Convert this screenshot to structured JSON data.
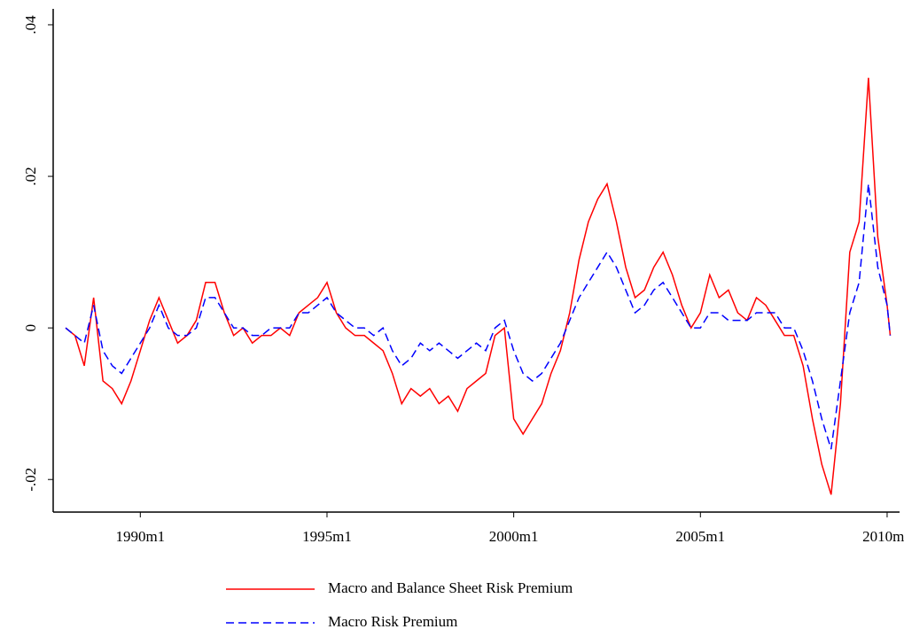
{
  "chart_data": {
    "type": "line",
    "x": [
      336,
      339,
      342,
      345,
      348,
      351,
      354,
      357,
      360,
      363,
      366,
      369,
      372,
      375,
      378,
      381,
      384,
      387,
      390,
      393,
      396,
      399,
      402,
      405,
      408,
      411,
      414,
      417,
      420,
      423,
      426,
      429,
      432,
      435,
      438,
      441,
      444,
      447,
      450,
      453,
      456,
      459,
      462,
      465,
      468,
      471,
      474,
      477,
      480,
      483,
      486,
      489,
      492,
      495,
      498,
      501,
      504,
      507,
      510,
      513,
      516,
      519,
      522,
      525,
      528,
      531,
      534,
      537,
      540,
      543,
      546,
      549,
      552,
      555,
      558,
      561,
      564,
      567,
      570,
      573,
      576,
      579,
      582,
      585,
      588,
      591,
      594,
      597,
      600,
      601
    ],
    "series": [
      {
        "name": "Macro and Balance Sheet Risk Premium",
        "color": "#ff0000",
        "dash": false,
        "values": [
          0,
          -0.001,
          -0.005,
          0.004,
          -0.007,
          -0.008,
          -0.01,
          -0.007,
          -0.003,
          0.001,
          0.004,
          0.001,
          -0.002,
          -0.001,
          0.001,
          0.006,
          0.006,
          0.002,
          -0.001,
          0,
          -0.002,
          -0.001,
          -0.001,
          0,
          -0.001,
          0.002,
          0.003,
          0.004,
          0.006,
          0.002,
          0,
          -0.001,
          -0.001,
          -0.002,
          -0.003,
          -0.006,
          -0.01,
          -0.008,
          -0.009,
          -0.008,
          -0.01,
          -0.009,
          -0.011,
          -0.008,
          -0.007,
          -0.006,
          -0.001,
          0,
          -0.012,
          -0.014,
          -0.012,
          -0.01,
          -0.006,
          -0.003,
          0.002,
          0.009,
          0.014,
          0.017,
          0.019,
          0.014,
          0.008,
          0.004,
          0.005,
          0.008,
          0.01,
          0.007,
          0.003,
          0,
          0.002,
          0.007,
          0.004,
          0.005,
          0.002,
          0.001,
          0.004,
          0.003,
          0.001,
          -0.001,
          -0.001,
          -0.005,
          -0.012,
          -0.018,
          -0.022,
          -0.01,
          0.01,
          0.014,
          0.033,
          0.012,
          0.003,
          -0.001
        ]
      },
      {
        "name": "Macro Risk Premium",
        "color": "#0000ff",
        "dash": true,
        "values": [
          0,
          -0.001,
          -0.002,
          0.003,
          -0.003,
          -0.005,
          -0.006,
          -0.004,
          -0.002,
          0,
          0.003,
          0,
          -0.001,
          -0.001,
          0,
          0.004,
          0.004,
          0.002,
          0,
          0,
          -0.001,
          -0.001,
          0,
          0,
          0,
          0.002,
          0.002,
          0.003,
          0.004,
          0.002,
          0.001,
          0,
          0,
          -0.001,
          0,
          -0.003,
          -0.005,
          -0.004,
          -0.002,
          -0.003,
          -0.002,
          -0.003,
          -0.004,
          -0.003,
          -0.002,
          -0.003,
          0,
          0.001,
          -0.003,
          -0.006,
          -0.007,
          -0.006,
          -0.004,
          -0.002,
          0.001,
          0.004,
          0.006,
          0.008,
          0.01,
          0.008,
          0.005,
          0.002,
          0.003,
          0.005,
          0.006,
          0.004,
          0.002,
          0,
          0,
          0.002,
          0.002,
          0.001,
          0.001,
          0.001,
          0.002,
          0.002,
          0.002,
          0,
          0,
          -0.003,
          -0.007,
          -0.012,
          -0.016,
          -0.007,
          0.002,
          0.006,
          0.019,
          0.008,
          0.003,
          -0.001
        ]
      }
    ],
    "xlim": [
      332,
      604
    ],
    "xticks": [
      {
        "value": 360,
        "label": "1990m1"
      },
      {
        "value": 420,
        "label": "1995m1"
      },
      {
        "value": 480,
        "label": "2000m1"
      },
      {
        "value": 540,
        "label": "2005m1"
      },
      {
        "value": 600,
        "label": "2010m1"
      }
    ],
    "ylim": [
      -0.0243,
      0.0421
    ],
    "yticks": [
      {
        "value": -0.02,
        "label": "-.02"
      },
      {
        "value": 0,
        "label": "0"
      },
      {
        "value": 0.02,
        "label": ".02"
      },
      {
        "value": 0.04,
        "label": ".04"
      }
    ]
  }
}
